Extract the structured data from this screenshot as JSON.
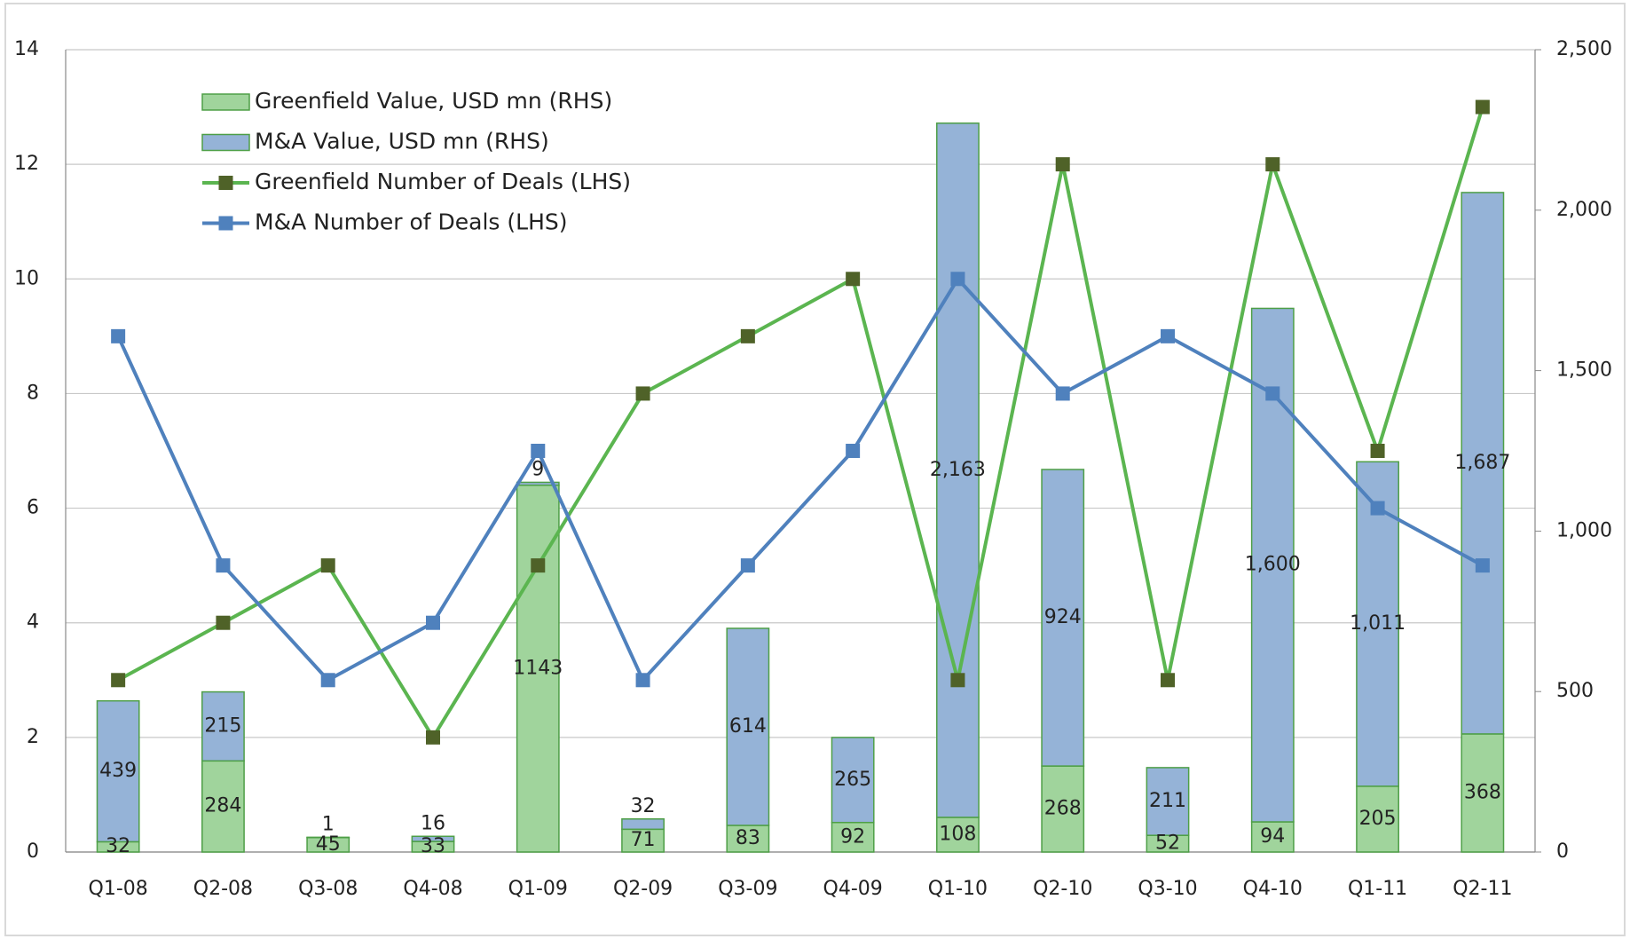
{
  "chart_data": {
    "type": "bar",
    "categories": [
      "Q1-08",
      "Q2-08",
      "Q3-08",
      "Q4-08",
      "Q1-09",
      "Q2-09",
      "Q3-09",
      "Q4-09",
      "Q1-10",
      "Q2-10",
      "Q3-10",
      "Q4-10",
      "Q1-11",
      "Q2-11"
    ],
    "series": [
      {
        "name": "Greenfield Value, USD mn (RHS)",
        "type": "bar",
        "axis": "y2",
        "color": "#a0d49c",
        "border": "#4e9f47",
        "values": [
          32,
          284,
          45,
          33,
          1143,
          71,
          83,
          92,
          108,
          268,
          52,
          94,
          205,
          368
        ]
      },
      {
        "name": "M&A Value, USD mn (RHS)",
        "type": "bar",
        "axis": "y2",
        "color": "#95b3d7",
        "border": "#4e9f47",
        "values": [
          439,
          215,
          1,
          16,
          9,
          32,
          614,
          265,
          2163,
          924,
          211,
          1600,
          1011,
          1687
        ],
        "value_labels": [
          "439",
          "215",
          "1",
          "16",
          "9",
          "32",
          "614",
          "265",
          "2,163",
          "924",
          "211",
          "1,600",
          "1,011",
          "1,687"
        ]
      },
      {
        "name": "Greenfield Number of Deals (LHS)",
        "type": "line",
        "color": "#5bb550",
        "marker_color": "#4f6228",
        "values": [
          3,
          4,
          5,
          2,
          5,
          8,
          9,
          10,
          3,
          12,
          3,
          12,
          7,
          13
        ]
      },
      {
        "name": "M&A Number of Deals (LHS)",
        "type": "line",
        "color": "#4f81bd",
        "marker_color": "#4f81bd",
        "values": [
          9,
          5,
          3,
          4,
          7,
          3,
          5,
          7,
          10,
          8,
          9,
          8,
          6,
          5
        ]
      }
    ],
    "ylim": [
      0,
      14
    ],
    "yticks": [
      0,
      2,
      4,
      6,
      8,
      10,
      12,
      14
    ],
    "y2lim": [
      0,
      2500
    ],
    "y2ticks": [
      0,
      500,
      {
        "value": 1000,
        "label": "1,000"
      },
      {
        "value": 1500,
        "label": "1,500"
      },
      {
        "value": 2000,
        "label": "2,000"
      },
      {
        "value": 2500,
        "label": "2,500"
      }
    ],
    "grid": true,
    "legend": "upper left"
  }
}
